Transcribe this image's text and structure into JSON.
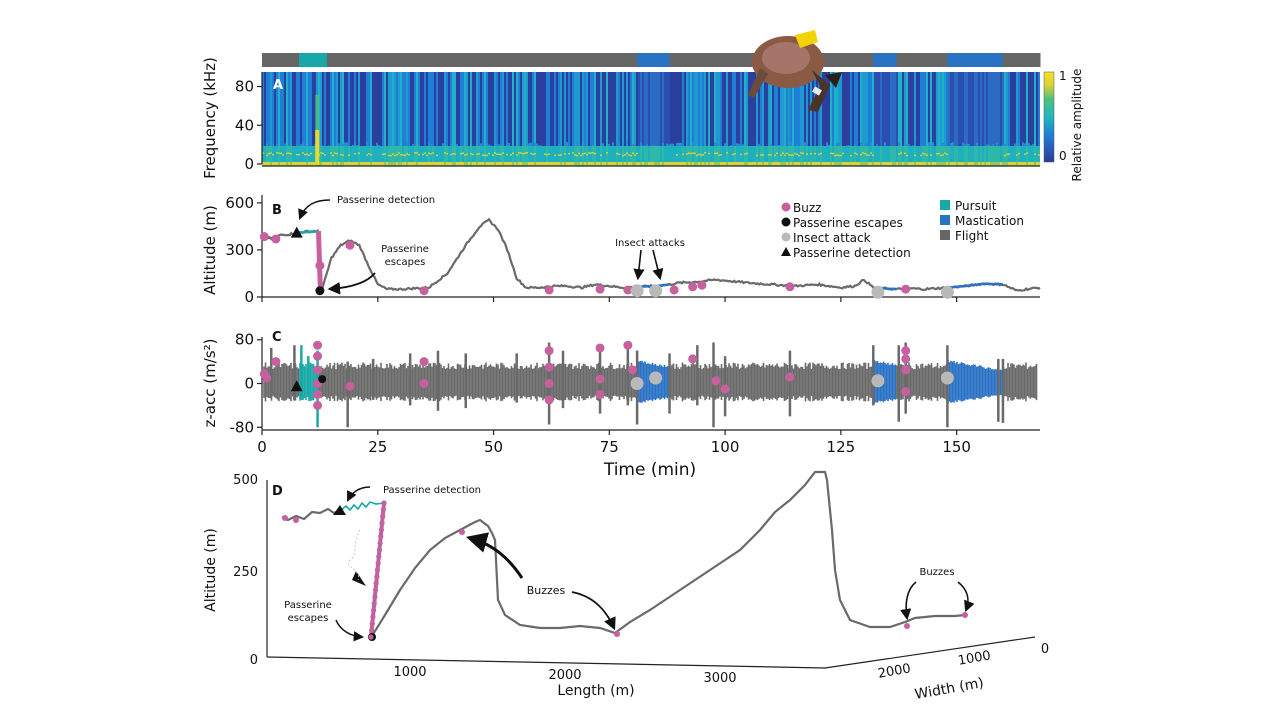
{
  "chart_data": [
    {
      "panel": "A",
      "type": "heatmap",
      "title": "",
      "ylabel": "Frequency (kHz)",
      "yticks": [
        "0",
        "40",
        "80"
      ],
      "ylim": [
        0,
        95
      ],
      "xlim": [
        0,
        168
      ],
      "colorbar": {
        "label": "Relative amplitude",
        "ticks": [
          "0",
          "1"
        ],
        "colors": [
          "#2b3a9a",
          "#1f7fd6",
          "#1fb8c0",
          "#4fc17a",
          "#d8d13a",
          "#f5e21a"
        ]
      },
      "behavior_bar": [
        {
          "state": "Flight",
          "start": 0,
          "end": 8
        },
        {
          "state": "Pursuit",
          "start": 8,
          "end": 14
        },
        {
          "state": "Flight",
          "start": 14,
          "end": 81
        },
        {
          "state": "Mastication",
          "start": 81,
          "end": 88
        },
        {
          "state": "Flight",
          "start": 88,
          "end": 132
        },
        {
          "state": "Mastication",
          "start": 132,
          "end": 137
        },
        {
          "state": "Flight",
          "start": 137,
          "end": 148
        },
        {
          "state": "Mastication",
          "start": 148,
          "end": 160
        },
        {
          "state": "Flight",
          "start": 160,
          "end": 168
        }
      ]
    },
    {
      "panel": "B",
      "type": "line",
      "ylabel": "Altitude (m)",
      "yticks": [
        "0",
        "300",
        "600"
      ],
      "ylim": [
        0,
        650
      ],
      "xlim": [
        0,
        168
      ],
      "x": [
        0,
        1,
        2,
        4,
        6,
        7.5,
        9,
        11,
        12,
        12.5,
        13,
        15,
        17,
        19,
        21,
        23,
        25,
        27,
        30,
        33,
        36,
        40,
        44,
        47,
        49,
        51,
        53,
        55,
        57,
        60,
        63,
        66,
        69,
        72,
        75,
        78,
        81,
        85,
        88,
        90,
        93,
        95,
        98,
        100,
        105,
        110,
        115,
        120,
        125,
        128,
        130,
        132,
        134,
        137,
        140,
        143,
        148,
        152,
        156,
        160,
        163,
        165,
        168
      ],
      "y": [
        390,
        385,
        370,
        395,
        400,
        410,
        415,
        420,
        420,
        40,
        50,
        250,
        330,
        360,
        330,
        200,
        80,
        50,
        50,
        55,
        60,
        150,
        330,
        450,
        490,
        430,
        300,
        120,
        60,
        60,
        70,
        70,
        60,
        80,
        70,
        60,
        65,
        70,
        80,
        90,
        95,
        100,
        110,
        105,
        90,
        80,
        70,
        80,
        60,
        70,
        110,
        60,
        55,
        50,
        55,
        50,
        60,
        70,
        85,
        80,
        40,
        50,
        60
      ],
      "mastication_ranges": [
        [
          81,
          88
        ],
        [
          132,
          137
        ],
        [
          148,
          160
        ]
      ],
      "pursuit_range": [
        8,
        12
      ]
    },
    {
      "panel": "C",
      "type": "line",
      "ylabel": "z-acc (m/s²)",
      "yticks": [
        "-80",
        "0",
        "80"
      ],
      "ylim": [
        -85,
        85
      ],
      "xlim": [
        0,
        168
      ],
      "xticks": [
        "0",
        "25",
        "50",
        "75",
        "100",
        "125",
        "150"
      ],
      "xlabel": "Time (min)",
      "envelope_amplitude": 35,
      "spikes": [
        {
          "t": 2,
          "hi": 65,
          "lo": -25
        },
        {
          "t": 7,
          "hi": 70,
          "lo": -30
        },
        {
          "t": 8.5,
          "hi": 70,
          "lo": -30
        },
        {
          "t": 10,
          "hi": 50,
          "lo": -25
        },
        {
          "t": 12,
          "hi": 60,
          "lo": -80
        },
        {
          "t": 18.5,
          "hi": 40,
          "lo": -80
        },
        {
          "t": 24,
          "hi": 45,
          "lo": -30
        },
        {
          "t": 32,
          "hi": 55,
          "lo": -40
        },
        {
          "t": 38,
          "hi": 60,
          "lo": -50
        },
        {
          "t": 44,
          "hi": 55,
          "lo": -45
        },
        {
          "t": 55,
          "hi": 55,
          "lo": -35
        },
        {
          "t": 62,
          "hi": 75,
          "lo": -75
        },
        {
          "t": 65,
          "hi": 60,
          "lo": -45
        },
        {
          "t": 73,
          "hi": 70,
          "lo": -55
        },
        {
          "t": 79,
          "hi": 70,
          "lo": -40
        },
        {
          "t": 81,
          "hi": 60,
          "lo": -75
        },
        {
          "t": 88,
          "hi": 55,
          "lo": -55
        },
        {
          "t": 94,
          "hi": 70,
          "lo": -40
        },
        {
          "t": 97.5,
          "hi": 75,
          "lo": -80
        },
        {
          "t": 100,
          "hi": 50,
          "lo": -60
        },
        {
          "t": 114,
          "hi": 60,
          "lo": -60
        },
        {
          "t": 132,
          "hi": 70,
          "lo": -40
        },
        {
          "t": 137.5,
          "hi": 70,
          "lo": -70
        },
        {
          "t": 139,
          "hi": 75,
          "lo": -55
        },
        {
          "t": 148,
          "hi": 70,
          "lo": -80
        },
        {
          "t": 159,
          "hi": 45,
          "lo": -70
        },
        {
          "t": 160,
          "hi": 45,
          "lo": -72
        }
      ]
    },
    {
      "panel": "D",
      "type": "line",
      "projection": "3d",
      "ylabel": "Altitude (m)",
      "yticks": [
        "0",
        "250",
        "500"
      ],
      "zlim": [
        0,
        500
      ],
      "xlabel": "Length (m)",
      "xticks": [
        "1000",
        "2000",
        "3000"
      ],
      "wlabel": "Width (m)",
      "wticks": [
        "2000",
        "1000",
        "0"
      ]
    }
  ],
  "panel_letters": {
    "A": "A",
    "B": "B",
    "C": "C",
    "D": "D"
  },
  "legend": {
    "markers": [
      {
        "label": "Buzz",
        "symbol": "circle",
        "color": "#c6609f"
      },
      {
        "label": "Passerine escapes",
        "symbol": "circle",
        "color": "#111111"
      },
      {
        "label": "Insect attack",
        "symbol": "circle",
        "color": "#b9b9b9"
      },
      {
        "label": "Passerine detection",
        "symbol": "triangle",
        "color": "#111111"
      }
    ],
    "states": [
      {
        "label": "Pursuit",
        "color": "#18a8a8"
      },
      {
        "label": "Mastication",
        "color": "#2a72c4"
      },
      {
        "label": "Flight",
        "color": "#666666"
      }
    ]
  },
  "annotations": {
    "b_detection": "Passerine detection",
    "b_escapes_1": "Passerine",
    "b_escapes_2": "escapes",
    "b_insect": "Insect attacks",
    "d_detection": "Passerine detection",
    "d_escapes_1": "Passerine",
    "d_escapes_2": "escapes",
    "d_buzzes_1": "Buzzes",
    "d_buzzes_2": "Buzzes"
  },
  "events": {
    "buzz_B": [
      [
        0.5,
        385
      ],
      [
        3,
        370
      ],
      [
        12.5,
        200
      ],
      [
        19,
        330
      ],
      [
        35,
        40
      ],
      [
        62,
        45
      ],
      [
        73,
        50
      ],
      [
        79,
        45
      ],
      [
        89,
        45
      ],
      [
        93,
        65
      ],
      [
        95,
        75
      ],
      [
        114,
        65
      ],
      [
        139,
        50
      ]
    ],
    "insect_B": [
      [
        81,
        40
      ],
      [
        85,
        40
      ],
      [
        133,
        30
      ],
      [
        148,
        30
      ]
    ],
    "buzz_C": [
      [
        0.5,
        18
      ],
      [
        1,
        10
      ],
      [
        3,
        40
      ],
      [
        12,
        70
      ],
      [
        12,
        50
      ],
      [
        12,
        25
      ],
      [
        12,
        0
      ],
      [
        12,
        -20
      ],
      [
        12,
        -40
      ],
      [
        19,
        -5
      ],
      [
        35,
        40
      ],
      [
        35,
        0
      ],
      [
        62,
        60
      ],
      [
        62,
        30
      ],
      [
        62,
        0
      ],
      [
        62,
        -30
      ],
      [
        73,
        65
      ],
      [
        73,
        8
      ],
      [
        73,
        -20
      ],
      [
        79,
        70
      ],
      [
        80,
        25
      ],
      [
        93,
        45
      ],
      [
        98,
        5
      ],
      [
        100,
        -10
      ],
      [
        114,
        12
      ],
      [
        139,
        60
      ],
      [
        139,
        45
      ],
      [
        139,
        25
      ],
      [
        139,
        -15
      ]
    ],
    "insect_C": [
      [
        81,
        0
      ],
      [
        85,
        10
      ],
      [
        133,
        5
      ],
      [
        148,
        10
      ]
    ],
    "escape_B": [
      12.5,
      40
    ],
    "escape_C": [
      13,
      8
    ],
    "detect_B": [
      7.5,
      410
    ],
    "detect_C": [
      7.5,
      -5
    ]
  }
}
